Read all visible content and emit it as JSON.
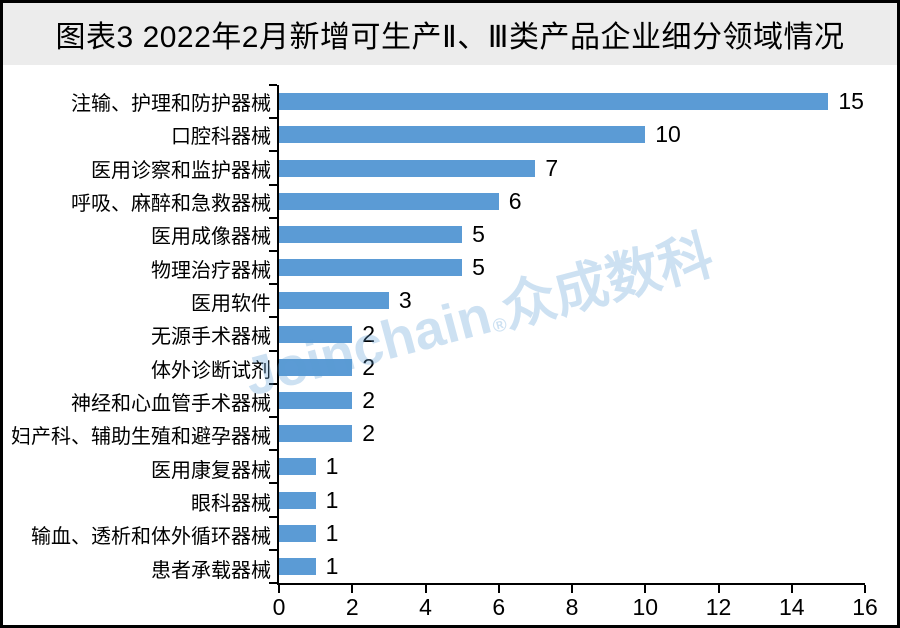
{
  "title": "图表3  2022年2月新增可生产Ⅱ、Ⅲ类产品企业细分领域情况",
  "watermark": {
    "latin": "Joinchain",
    "reg": "®",
    "cjk": "众成数科"
  },
  "colors": {
    "bar": "#5b9bd5",
    "title_bg": "#ececec",
    "axis": "#000000",
    "watermark": "rgba(91,155,213,0.30)",
    "text": "#000000"
  },
  "chart_data": {
    "type": "bar",
    "orientation": "horizontal",
    "title": "图表3  2022年2月新增可生产Ⅱ、Ⅲ类产品企业细分领域情况",
    "categories": [
      "注输、护理和防护器械",
      "口腔科器械",
      "医用诊察和监护器械",
      "呼吸、麻醉和急救器械",
      "医用成像器械",
      "物理治疗器械",
      "医用软件",
      "无源手术器械",
      "体外诊断试剂",
      "神经和心血管手术器械",
      "妇产科、辅助生殖和避孕器械",
      "医用康复器械",
      "眼科器械",
      "输血、透析和体外循环器械",
      "患者承载器械"
    ],
    "values": [
      15,
      10,
      7,
      6,
      5,
      5,
      3,
      2,
      2,
      2,
      2,
      1,
      1,
      1,
      1
    ],
    "xlabel": "",
    "ylabel": "",
    "xlim": [
      0,
      16
    ],
    "x_ticks": [
      0,
      2,
      4,
      6,
      8,
      10,
      12,
      14,
      16
    ],
    "grid": false,
    "legend": false,
    "data_labels": true
  }
}
